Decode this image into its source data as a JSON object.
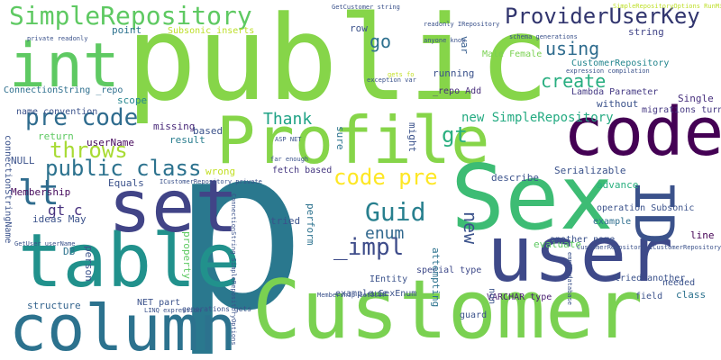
{
  "words": [
    {
      "text": "public",
      "color": "#86d549"
    },
    {
      "text": "p",
      "color": "#2a788e"
    },
    {
      "text": "Customer",
      "color": "#7ad151"
    },
    {
      "text": "Profile",
      "color": "#86d549"
    },
    {
      "text": "Sex",
      "color": "#3dbc74"
    },
    {
      "text": "user",
      "color": "#3e4989"
    },
    {
      "text": "code",
      "color": "#440154"
    },
    {
      "text": "table",
      "color": "#21918c"
    },
    {
      "text": "set",
      "color": "#414487"
    },
    {
      "text": "column",
      "color": "#2c728e"
    },
    {
      "text": "int",
      "color": "#5ec962"
    },
    {
      "text": "ID",
      "color": "#3b528b"
    },
    {
      "text": "SimpleRepository",
      "color": "#5ec962"
    },
    {
      "text": "ProviderUserKey",
      "color": "#31356e"
    },
    {
      "text": "pre code",
      "color": "#2f6c8e"
    },
    {
      "text": "public class",
      "color": "#2c728e"
    },
    {
      "text": "lt",
      "color": "#2f6c8e"
    },
    {
      "text": "throws",
      "color": "#a8db34"
    },
    {
      "text": "Guid",
      "color": "#277f8e"
    },
    {
      "text": "code pre",
      "color": "#fde725"
    },
    {
      "text": "create",
      "color": "#28ae80"
    },
    {
      "text": "gt",
      "color": "#29af7f"
    },
    {
      "text": "_impl",
      "color": "#3e4c8a"
    },
    {
      "text": "go",
      "color": "#2d708e"
    },
    {
      "text": "using",
      "color": "#2f6c8e"
    },
    {
      "text": "new",
      "color": "#3b528b"
    },
    {
      "text": "enum",
      "color": "#31688e"
    },
    {
      "text": "Thank",
      "color": "#20a386"
    },
    {
      "text": "gt c",
      "color": "#46307e"
    },
    {
      "text": "new SimpleRepository",
      "color": "#25ab82"
    },
    {
      "text": "CustomerRepository",
      "color": "#24868e"
    },
    {
      "text": "Lambda Parameter",
      "color": "#443983"
    },
    {
      "text": "Serializable",
      "color": "#3b528b"
    },
    {
      "text": "ConnectionString _repo",
      "color": "#2e6f8e"
    },
    {
      "text": "running",
      "color": "#3b528b"
    },
    {
      "text": "_repo Add",
      "color": "#472d7b"
    },
    {
      "text": "Male Female",
      "color": "#7ad151"
    },
    {
      "text": "Subsonic inserts",
      "color": "#bddf26"
    },
    {
      "text": "point",
      "color": "#2c728e"
    },
    {
      "text": "row",
      "color": "#3b528b"
    },
    {
      "text": "var",
      "color": "#365d8d"
    },
    {
      "text": "string",
      "color": "#414487"
    },
    {
      "text": "Single",
      "color": "#472f7d"
    },
    {
      "text": "without",
      "color": "#3b528b"
    },
    {
      "text": "migrations turned",
      "color": "#453882"
    },
    {
      "text": "scope",
      "color": "#24868e"
    },
    {
      "text": "name convention",
      "color": "#3b528b"
    },
    {
      "text": "return",
      "color": "#5ec962"
    },
    {
      "text": "userName",
      "color": "#46085c"
    },
    {
      "text": "missing",
      "color": "#482878"
    },
    {
      "text": "based",
      "color": "#3b528b"
    },
    {
      "text": "result",
      "color": "#287d8e"
    },
    {
      "text": "wrong",
      "color": "#c2df23"
    },
    {
      "text": "fetch based",
      "color": "#453781"
    },
    {
      "text": "describe",
      "color": "#3b528b"
    },
    {
      "text": "advance",
      "color": "#2ab07f"
    },
    {
      "text": "operation Subsonic",
      "color": "#3b528b"
    },
    {
      "text": "example",
      "color": "#2e6e8e"
    },
    {
      "text": "line",
      "color": "#440154"
    },
    {
      "text": "Equals",
      "color": "#3b528b"
    },
    {
      "text": "Membership",
      "color": "#460a5d"
    },
    {
      "text": "ideas May",
      "color": "#3b528b"
    },
    {
      "text": "DB",
      "color": "#2c728e"
    },
    {
      "text": "NULL",
      "color": "#3b528b"
    },
    {
      "text": "connectionStringName",
      "color": "#3b528b"
    },
    {
      "text": "structure",
      "color": "#33638d"
    },
    {
      "text": "NET part",
      "color": "#3b528b"
    },
    {
      "text": "tried",
      "color": "#3b528b"
    },
    {
      "text": "special type",
      "color": "#3e4989"
    },
    {
      "text": "IEntity",
      "color": "#3b528b"
    },
    {
      "text": "example SexEnum",
      "color": "#3b528b"
    },
    {
      "text": "VARCHAR type",
      "color": "#481f70"
    },
    {
      "text": "guard",
      "color": "#3b528b"
    },
    {
      "text": "evaluate",
      "color": "#5ec962"
    },
    {
      "text": "another name",
      "color": "#3b528b"
    },
    {
      "text": "needed",
      "color": "#3b528b"
    },
    {
      "text": "class",
      "color": "#2c728e"
    },
    {
      "text": "tried another",
      "color": "#3b528b"
    },
    {
      "text": "field",
      "color": "#3b528b"
    },
    {
      "text": "attempting",
      "color": "#2c728e"
    },
    {
      "text": "non",
      "color": "#3b528b"
    },
    {
      "text": "use",
      "color": "#3b528b"
    },
    {
      "text": "might",
      "color": "#3b528b"
    },
    {
      "text": "sure",
      "color": "#2c728e"
    },
    {
      "text": "perform",
      "color": "#2c728e"
    },
    {
      "text": "person",
      "color": "#3b528b"
    },
    {
      "text": "property",
      "color": "#5ec962"
    },
    {
      "text": "generations gets",
      "color": "#3b528b"
    },
    {
      "text": "ASP NET",
      "color": "#3b528b"
    },
    {
      "text": "far enough",
      "color": "#3b528b"
    },
    {
      "text": "ICustomerRepository private",
      "color": "#3b528b"
    },
    {
      "text": "GetCustomer string",
      "color": "#3b528b"
    },
    {
      "text": "readonly IRepository",
      "color": "#3b528b"
    },
    {
      "text": "anyone know",
      "color": "#3b528b"
    },
    {
      "text": "private readonly",
      "color": "#3b528b"
    },
    {
      "text": "schema generations",
      "color": "#3b528b"
    },
    {
      "text": "expression compilation",
      "color": "#3b528b"
    },
    {
      "text": "exception var",
      "color": "#3b528b"
    },
    {
      "text": "Membership GetUser",
      "color": "#3b528b"
    },
    {
      "text": "CustomerRepository ICustomerRepository",
      "color": "#3b528b"
    },
    {
      "text": "LINQ expression",
      "color": "#3b528b"
    },
    {
      "text": "GetUser userName",
      "color": "#3b528b"
    },
    {
      "text": "SimpleRepositoryOptions RunMigrations",
      "color": "#bddf26"
    },
    {
      "text": "ConnectionString SimpleRepositoryOptions",
      "color": "#3b528b"
    },
    {
      "text": "empty database",
      "color": "#3b528b"
    },
    {
      "text": "gets fo",
      "color": "#c2df23"
    }
  ]
}
